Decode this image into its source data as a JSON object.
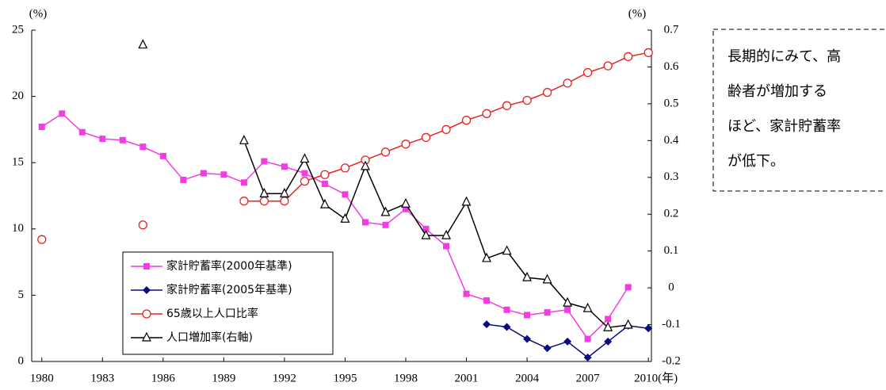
{
  "chart_data": {
    "type": "line",
    "y_unit_label": "(%)",
    "y2_unit_label": "(%)",
    "x": [
      1980,
      1981,
      1982,
      1983,
      1984,
      1985,
      1986,
      1987,
      1988,
      1989,
      1990,
      1991,
      1992,
      1993,
      1994,
      1995,
      1996,
      1997,
      1998,
      1999,
      2000,
      2001,
      2002,
      2003,
      2004,
      2005,
      2006,
      2007,
      2008,
      2009,
      2010
    ],
    "xlim": [
      1979.5,
      2010.15
    ],
    "xticks": [
      1980,
      1983,
      1986,
      1989,
      1992,
      1995,
      1998,
      2001,
      2004,
      2007,
      {
        "value": 2010,
        "label": "2010(年)"
      }
    ],
    "ylim": [
      0,
      25
    ],
    "yticks": [
      0,
      5,
      10,
      15,
      20,
      25
    ],
    "y2lim": [
      -0.2,
      0.7
    ],
    "y2ticks": [
      -0.2,
      -0.1,
      0,
      0.1,
      0.2,
      0.3,
      0.4,
      0.5,
      0.6,
      0.7
    ],
    "grid": false,
    "legend": "lower left",
    "series": [
      {
        "name": "家計貯蓄率(2000年基準)",
        "color": "#f03ce0",
        "marker": "square",
        "values": [
          17.7,
          18.7,
          17.3,
          16.8,
          16.7,
          16.2,
          15.5,
          13.7,
          14.2,
          14.1,
          13.5,
          15.1,
          14.7,
          14.2,
          13.4,
          12.6,
          10.5,
          10.3,
          11.5,
          10.0,
          8.7,
          5.1,
          4.6,
          3.9,
          3.5,
          3.7,
          3.9,
          1.7,
          3.2,
          5.6,
          null
        ]
      },
      {
        "name": "家計貯蓄率(2005年基準)",
        "color": "#0a0a80",
        "marker": "diamond",
        "values": [
          null,
          null,
          null,
          null,
          null,
          null,
          null,
          null,
          null,
          null,
          null,
          null,
          null,
          null,
          null,
          null,
          null,
          null,
          null,
          null,
          null,
          null,
          2.8,
          2.6,
          1.7,
          1.0,
          1.5,
          0.3,
          1.5,
          2.7,
          2.5
        ]
      },
      {
        "name": "65歳以上人口比率",
        "color": "#e82020",
        "marker": "circle",
        "values": [
          9.2,
          null,
          null,
          null,
          null,
          10.3,
          null,
          null,
          null,
          null,
          12.1,
          12.1,
          12.1,
          13.6,
          14.1,
          14.6,
          15.2,
          15.8,
          16.4,
          16.9,
          17.5,
          18.2,
          18.7,
          19.3,
          19.7,
          20.3,
          21.0,
          21.8,
          22.3,
          23.0,
          23.3
        ]
      },
      {
        "name": "人口増加率(右軸)",
        "color": "#000000",
        "marker": "triangle",
        "axis": "y2",
        "values": [
          null,
          null,
          null,
          null,
          null,
          0.66,
          null,
          null,
          null,
          null,
          0.4,
          0.256,
          0.256,
          0.35,
          0.226,
          0.187,
          0.33,
          0.205,
          0.228,
          0.142,
          0.142,
          0.233,
          0.08,
          0.1,
          0.028,
          0.022,
          -0.041,
          -0.056,
          -0.108,
          -0.101,
          null
        ]
      }
    ],
    "annotation": [
      "長期的にみて、高",
      "齢者が増加する",
      "ほど、家計貯蓄率",
      "が低下。"
    ]
  }
}
